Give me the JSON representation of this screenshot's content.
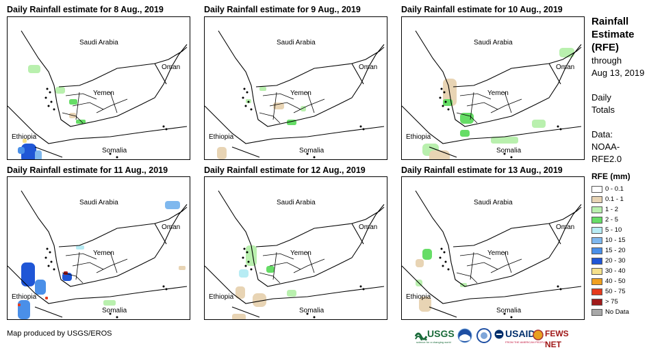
{
  "panels": [
    {
      "title": "Daily Rainfall estimate for 8 Aug., 2019"
    },
    {
      "title": "Daily Rainfall estimate for 9 Aug., 2019"
    },
    {
      "title": "Daily Rainfall estimate for 10 Aug., 2019"
    },
    {
      "title": "Daily Rainfall estimate for 11 Aug., 2019"
    },
    {
      "title": "Daily Rainfall estimate for 12 Aug., 2019"
    },
    {
      "title": "Daily Rainfall estimate for 13 Aug., 2019"
    }
  ],
  "map_labels": {
    "saudi": "Saudi Arabia",
    "oman": "Oman",
    "yemen": "Yemen",
    "ethiopia": "Ethiopia",
    "somalia": "Somalia"
  },
  "sidebar": {
    "title_line1": "Rainfall",
    "title_line2": "Estimate",
    "title_line3": "(RFE)",
    "through": "through",
    "date": "Aug 13, 2019",
    "totals_line1": "Daily",
    "totals_line2": "Totals",
    "data_line1": "Data:",
    "data_line2": "NOAA-",
    "data_line3": "RFE2.0"
  },
  "legend": {
    "title": "RFE (mm)",
    "items": [
      {
        "label": "0 - 0.1",
        "color": "#ffffff"
      },
      {
        "label": "0.1 - 1",
        "color": "#e8d4b4"
      },
      {
        "label": "1 - 2",
        "color": "#b9f0ae"
      },
      {
        "label": "2 - 5",
        "color": "#66dd66"
      },
      {
        "label": "5 - 10",
        "color": "#b7ecf4"
      },
      {
        "label": "10 - 15",
        "color": "#7fb8ee"
      },
      {
        "label": "15 - 20",
        "color": "#4a8fe8"
      },
      {
        "label": "20 - 30",
        "color": "#1f56d6"
      },
      {
        "label": "30 - 40",
        "color": "#f5e08a"
      },
      {
        "label": "40 - 50",
        "color": "#f0a020"
      },
      {
        "label": "50 - 75",
        "color": "#e53a1c"
      },
      {
        "label": "> 75",
        "color": "#a01a1a"
      },
      {
        "label": "No Data",
        "color": "#a8a8a8"
      }
    ]
  },
  "credit": "Map produced by USGS/EROS",
  "logos": {
    "usgs": "USGS",
    "usgs_tag": "science for a changing world",
    "usaid": "USAID",
    "usaid_tag": "FROM THE AMERICAN PEOPLE",
    "fewsnet": "FEWS NET"
  },
  "rain_patches": [
    [
      {
        "shape": [
          30,
          70,
          18,
          12
        ],
        "level": 2
      },
      {
        "shape": [
          70,
          102,
          14,
          10
        ],
        "level": 2
      },
      {
        "shape": [
          90,
          120,
          12,
          8
        ],
        "level": 3
      },
      {
        "shape": [
          100,
          150,
          14,
          6
        ],
        "level": 3
      },
      {
        "shape": [
          20,
          185,
          22,
          28
        ],
        "level": 7
      },
      {
        "shape": [
          15,
          190,
          10,
          10
        ],
        "level": 6
      },
      {
        "shape": [
          40,
          195,
          10,
          16
        ],
        "level": 5
      },
      {
        "shape": [
          22,
          178,
          6,
          6
        ],
        "level": 8
      },
      {
        "shape": [
          90,
          140,
          10,
          8
        ],
        "level": 1
      }
    ],
    [
      {
        "shape": [
          80,
          102,
          10,
          6
        ],
        "level": 2
      },
      {
        "shape": [
          100,
          125,
          16,
          10
        ],
        "level": 1
      },
      {
        "shape": [
          120,
          150,
          14,
          8
        ],
        "level": 3
      },
      {
        "shape": [
          18,
          190,
          14,
          18
        ],
        "level": 1
      },
      {
        "shape": [
          60,
          120,
          8,
          6
        ],
        "level": 2
      },
      {
        "shape": [
          140,
          130,
          8,
          8
        ],
        "level": 2
      }
    ],
    [
      {
        "shape": [
          230,
          45,
          22,
          14
        ],
        "level": 2
      },
      {
        "shape": [
          60,
          90,
          20,
          40
        ],
        "level": 1
      },
      {
        "shape": [
          85,
          140,
          20,
          16
        ],
        "level": 3
      },
      {
        "shape": [
          85,
          165,
          14,
          10
        ],
        "level": 3
      },
      {
        "shape": [
          30,
          185,
          24,
          18
        ],
        "level": 2
      },
      {
        "shape": [
          40,
          195,
          30,
          20
        ],
        "level": 1
      },
      {
        "shape": [
          130,
          175,
          40,
          10
        ],
        "level": 2
      },
      {
        "shape": [
          190,
          150,
          20,
          12
        ],
        "level": 2
      },
      {
        "shape": [
          60,
          120,
          14,
          10
        ],
        "level": 3
      }
    ],
    [
      {
        "shape": [
          230,
          35,
          22,
          12
        ],
        "level": 5
      },
      {
        "shape": [
          20,
          125,
          20,
          35
        ],
        "level": 7
      },
      {
        "shape": [
          15,
          180,
          18,
          28
        ],
        "level": 6
      },
      {
        "shape": [
          40,
          150,
          16,
          22
        ],
        "level": 6
      },
      {
        "shape": [
          80,
          140,
          14,
          12
        ],
        "level": 7
      },
      {
        "shape": [
          82,
          138,
          6,
          5
        ],
        "level": 11
      },
      {
        "shape": [
          15,
          185,
          4,
          4
        ],
        "level": 10
      },
      {
        "shape": [
          55,
          175,
          4,
          4
        ],
        "level": 10
      },
      {
        "shape": [
          100,
          100,
          12,
          6
        ],
        "level": 4
      },
      {
        "shape": [
          140,
          180,
          18,
          8
        ],
        "level": 2
      },
      {
        "shape": [
          250,
          130,
          10,
          6
        ],
        "level": 1
      }
    ],
    [
      {
        "shape": [
          60,
          100,
          16,
          30
        ],
        "level": 2
      },
      {
        "shape": [
          50,
          135,
          14,
          12
        ],
        "level": 4
      },
      {
        "shape": [
          45,
          160,
          14,
          18
        ],
        "level": 1
      },
      {
        "shape": [
          90,
          130,
          12,
          10
        ],
        "level": 3
      },
      {
        "shape": [
          70,
          170,
          20,
          20
        ],
        "level": 1
      },
      {
        "shape": [
          120,
          165,
          14,
          10
        ],
        "level": 2
      },
      {
        "shape": [
          40,
          200,
          20,
          10
        ],
        "level": 1
      }
    ],
    [
      {
        "shape": [
          30,
          105,
          14,
          16
        ],
        "level": 3
      },
      {
        "shape": [
          20,
          120,
          12,
          12
        ],
        "level": 1
      },
      {
        "shape": [
          25,
          175,
          18,
          22
        ],
        "level": 1
      },
      {
        "shape": [
          85,
          155,
          10,
          6
        ],
        "level": 2
      },
      {
        "shape": [
          20,
          150,
          10,
          10
        ],
        "level": 2
      }
    ]
  ]
}
